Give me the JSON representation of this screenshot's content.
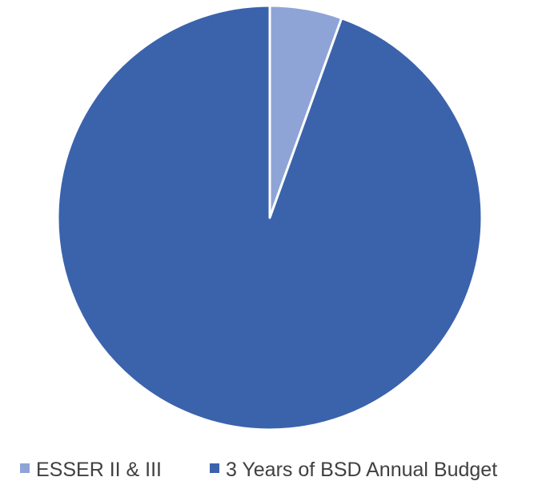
{
  "chart_data": {
    "type": "pie",
    "title": "",
    "slices": [
      {
        "label": "ESSER II & III",
        "value": 5.5,
        "color": "#8FA4D6"
      },
      {
        "label": "3 Years of BSD Annual Budget",
        "value": 94.5,
        "color": "#3B63AC"
      }
    ],
    "start_angle_deg": 0,
    "direction": "clockwise",
    "slice_separator_color": "#FFFFFF",
    "legend_position": "bottom"
  }
}
